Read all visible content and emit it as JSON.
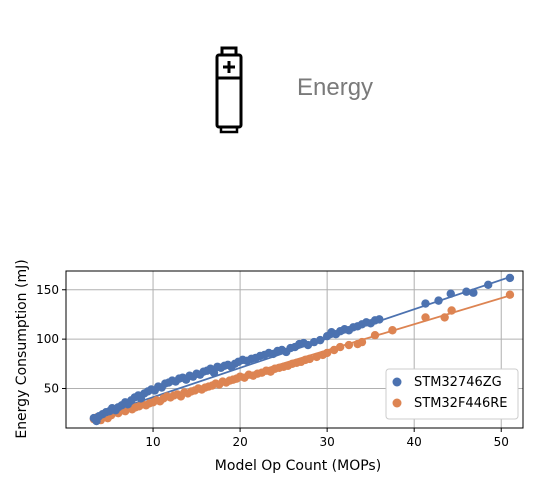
{
  "header": {
    "title": "Energy",
    "icon": "battery-icon"
  },
  "chart_data": {
    "type": "scatter",
    "xlabel": "Model Op Count (MOPs)",
    "ylabel": "Energy Consumption (mJ)",
    "xlim": [
      0,
      52.5
    ],
    "ylim": [
      10,
      169
    ],
    "xticks": [
      "10",
      "20",
      "30",
      "40",
      "50"
    ],
    "yticks": [
      "50",
      "100",
      "150"
    ],
    "xtick_values": [
      10,
      20,
      30,
      40,
      50
    ],
    "ytick_values": [
      50,
      100,
      150
    ],
    "grid": true,
    "legend_position": "lower-right",
    "series": [
      {
        "name": "STM32746ZG",
        "color": "#4C72B0",
        "fit": {
          "slope": 2.97,
          "intercept": 11.5,
          "x_range": [
            3,
            51
          ]
        },
        "points": [
          [
            3.2,
            20
          ],
          [
            3.5,
            17
          ],
          [
            3.8,
            22
          ],
          [
            4.2,
            24
          ],
          [
            4.6,
            26
          ],
          [
            5.0,
            27
          ],
          [
            5.3,
            30
          ],
          [
            5.7,
            28
          ],
          [
            6.0,
            31
          ],
          [
            6.4,
            33
          ],
          [
            6.8,
            36
          ],
          [
            7.1,
            34
          ],
          [
            7.5,
            38
          ],
          [
            7.9,
            41
          ],
          [
            8.3,
            43
          ],
          [
            8.6,
            40
          ],
          [
            9.0,
            45
          ],
          [
            9.4,
            47
          ],
          [
            9.8,
            49
          ],
          [
            10.2,
            48
          ],
          [
            10.6,
            52
          ],
          [
            11.0,
            51
          ],
          [
            11.4,
            55
          ],
          [
            11.8,
            56
          ],
          [
            12.2,
            58
          ],
          [
            12.6,
            57
          ],
          [
            13.0,
            60
          ],
          [
            13.4,
            61
          ],
          [
            13.8,
            59
          ],
          [
            14.2,
            63
          ],
          [
            14.6,
            62
          ],
          [
            15.0,
            65
          ],
          [
            15.4,
            64
          ],
          [
            15.8,
            67
          ],
          [
            16.2,
            68
          ],
          [
            16.6,
            70
          ],
          [
            17.0,
            66
          ],
          [
            17.4,
            72
          ],
          [
            17.8,
            71
          ],
          [
            18.2,
            73
          ],
          [
            18.6,
            74
          ],
          [
            19.0,
            72
          ],
          [
            19.4,
            75
          ],
          [
            19.8,
            77
          ],
          [
            20.3,
            79
          ],
          [
            20.8,
            78
          ],
          [
            21.3,
            80
          ],
          [
            21.8,
            81
          ],
          [
            22.3,
            83
          ],
          [
            22.8,
            84
          ],
          [
            23.3,
            86
          ],
          [
            23.8,
            85
          ],
          [
            24.3,
            88
          ],
          [
            24.8,
            89
          ],
          [
            25.3,
            87
          ],
          [
            25.8,
            91
          ],
          [
            26.3,
            92
          ],
          [
            26.8,
            95
          ],
          [
            27.3,
            96
          ],
          [
            27.8,
            94
          ],
          [
            28.5,
            97
          ],
          [
            29.2,
            99
          ],
          [
            30.0,
            103
          ],
          [
            30.5,
            107
          ],
          [
            31.0,
            105
          ],
          [
            31.5,
            108
          ],
          [
            32.0,
            110
          ],
          [
            32.5,
            109
          ],
          [
            33.0,
            112
          ],
          [
            33.5,
            113
          ],
          [
            34.0,
            115
          ],
          [
            34.5,
            117
          ],
          [
            35.0,
            116
          ],
          [
            35.5,
            119
          ],
          [
            36.0,
            120
          ],
          [
            41.3,
            136
          ],
          [
            42.8,
            139
          ],
          [
            44.2,
            146
          ],
          [
            46.0,
            148
          ],
          [
            46.8,
            147
          ],
          [
            48.5,
            155
          ],
          [
            51.0,
            162
          ]
        ]
      },
      {
        "name": "STM32F446RE",
        "color": "#DD8452",
        "fit": {
          "slope": 2.64,
          "intercept": 9.5,
          "x_range": [
            3,
            51
          ]
        },
        "points": [
          [
            3.2,
            19
          ],
          [
            3.6,
            21
          ],
          [
            4.0,
            18
          ],
          [
            4.4,
            22
          ],
          [
            4.8,
            20
          ],
          [
            5.2,
            23
          ],
          [
            5.6,
            26
          ],
          [
            6.0,
            25
          ],
          [
            6.4,
            28
          ],
          [
            6.8,
            27
          ],
          [
            7.2,
            30
          ],
          [
            7.6,
            29
          ],
          [
            8.0,
            31
          ],
          [
            8.4,
            32
          ],
          [
            8.8,
            34
          ],
          [
            9.2,
            33
          ],
          [
            9.6,
            35
          ],
          [
            10.0,
            36
          ],
          [
            10.4,
            38
          ],
          [
            10.8,
            37
          ],
          [
            11.2,
            40
          ],
          [
            11.6,
            42
          ],
          [
            12.0,
            41
          ],
          [
            12.4,
            43
          ],
          [
            12.8,
            44
          ],
          [
            13.2,
            42
          ],
          [
            13.6,
            46
          ],
          [
            14.0,
            45
          ],
          [
            14.4,
            47
          ],
          [
            14.8,
            48
          ],
          [
            15.2,
            50
          ],
          [
            15.6,
            49
          ],
          [
            16.0,
            51
          ],
          [
            16.4,
            52
          ],
          [
            16.8,
            53
          ],
          [
            17.2,
            55
          ],
          [
            17.6,
            54
          ],
          [
            18.0,
            57
          ],
          [
            18.4,
            56
          ],
          [
            18.8,
            58
          ],
          [
            19.2,
            59
          ],
          [
            19.6,
            60
          ],
          [
            20.0,
            62
          ],
          [
            20.5,
            61
          ],
          [
            21.0,
            64
          ],
          [
            21.5,
            63
          ],
          [
            22.0,
            65
          ],
          [
            22.5,
            66
          ],
          [
            23.0,
            68
          ],
          [
            23.5,
            67
          ],
          [
            24.0,
            70
          ],
          [
            24.5,
            71
          ],
          [
            25.0,
            72
          ],
          [
            25.5,
            73
          ],
          [
            26.0,
            75
          ],
          [
            26.5,
            76
          ],
          [
            27.0,
            77
          ],
          [
            27.5,
            79
          ],
          [
            28.0,
            80
          ],
          [
            28.8,
            82
          ],
          [
            29.5,
            84
          ],
          [
            30.0,
            86
          ],
          [
            30.8,
            89
          ],
          [
            31.5,
            92
          ],
          [
            32.5,
            94
          ],
          [
            33.5,
            95
          ],
          [
            34.0,
            97
          ],
          [
            35.5,
            104
          ],
          [
            37.5,
            109
          ],
          [
            41.3,
            122
          ],
          [
            43.5,
            122
          ],
          [
            44.3,
            129
          ],
          [
            51.0,
            145
          ]
        ]
      }
    ]
  }
}
